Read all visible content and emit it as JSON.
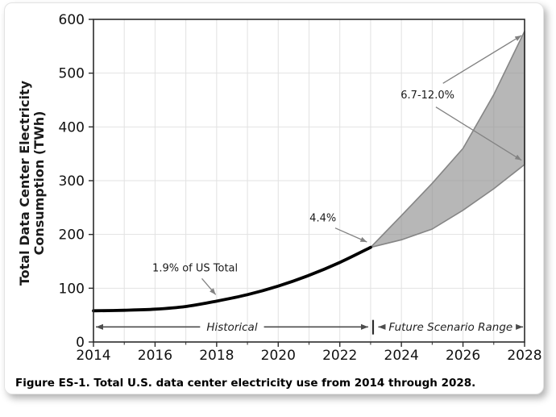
{
  "card": {
    "caption": "Figure ES-1. Total U.S. data center electricity use from 2014 through 2028."
  },
  "chart_data": {
    "type": "line",
    "title": "",
    "xlabel": "",
    "ylabel_lines": [
      "Total Data Center Electricity",
      "Consumption (TWh)"
    ],
    "xlim": [
      2014,
      2028
    ],
    "ylim": [
      0,
      600
    ],
    "x_major_ticks": [
      2014,
      2016,
      2018,
      2020,
      2022,
      2024,
      2026,
      2028
    ],
    "x_minor_ticks": [
      2015,
      2017,
      2019,
      2021,
      2023,
      2025,
      2027
    ],
    "y_major_ticks": [
      0,
      100,
      200,
      300,
      400,
      500,
      600
    ],
    "grid": true,
    "legend_position": "none",
    "colors": {
      "historical_line": "#000000",
      "band_fill": "#8a8a8a",
      "band_fill_opacity": 0.62,
      "band_edge": "#858585",
      "grid": "#e2e2e2",
      "spine": "#2b2b2b",
      "tick": "#2b2b2b",
      "annotation_arrow": "#828282",
      "range_arrow": "#4d4d4d"
    },
    "series": [
      {
        "name": "Historical",
        "type": "line",
        "x": [
          2014,
          2015,
          2016,
          2017,
          2018,
          2019,
          2020,
          2021,
          2022,
          2023
        ],
        "values": [
          58,
          59,
          61,
          66,
          76,
          88,
          104,
          124,
          148,
          176
        ]
      },
      {
        "name": "Future Scenario Range",
        "type": "band",
        "x": [
          2023,
          2024,
          2025,
          2026,
          2027,
          2028
        ],
        "lower": [
          176,
          190,
          210,
          245,
          285,
          330
        ],
        "upper": [
          176,
          235,
          295,
          360,
          460,
          578
        ]
      }
    ],
    "annotations": [
      {
        "text": "1.9% of US Total",
        "x": 2017.3,
        "y": 137,
        "arrows": [
          {
            "from": [
              2017.52,
              118
            ],
            "to": [
              2017.97,
              88
            ]
          }
        ]
      },
      {
        "text": "4.4%",
        "x": 2021.45,
        "y": 230,
        "arrows": [
          {
            "from": [
              2021.85,
              212
            ],
            "to": [
              2022.88,
              186
            ]
          }
        ]
      },
      {
        "text": "6.7-12.0%",
        "x": 2024.85,
        "y": 459,
        "arrows": [
          {
            "from": [
              2025.35,
              481
            ],
            "to": [
              2027.9,
              570
            ]
          },
          {
            "from": [
              2025.12,
              437
            ],
            "to": [
              2027.9,
              338
            ]
          }
        ]
      }
    ],
    "range_annotations": [
      {
        "label": "Historical",
        "x_from": 2014.08,
        "x_to": 2022.92,
        "y": 28
      },
      {
        "label": "Future Scenario Range",
        "x_from": 2023.25,
        "x_to": 2027.95,
        "y": 28
      }
    ],
    "range_divider": {
      "x": 2023.08,
      "y_from": 14,
      "y_to": 41
    }
  }
}
